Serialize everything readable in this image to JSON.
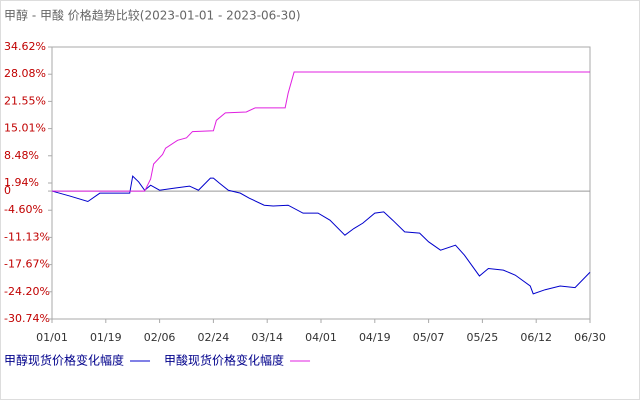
{
  "chart_data": {
    "type": "line",
    "title": "甲醇 - 甲酸 价格趋势比较(2023-01-01 - 2023-06-30)",
    "ylim": [
      -30.74,
      34.62
    ],
    "yticks": [
      {
        "value": 34.62,
        "label": "34.62%"
      },
      {
        "value": 28.08,
        "label": "28.08%"
      },
      {
        "value": 21.55,
        "label": "21.55%"
      },
      {
        "value": 15.01,
        "label": "15.01%"
      },
      {
        "value": 8.48,
        "label": "8.48%"
      },
      {
        "value": 1.94,
        "label": "1.94%"
      },
      0,
      {
        "value": -4.6,
        "label": "-4.60%"
      },
      {
        "value": -11.13,
        "label": "-11.13%"
      },
      {
        "value": -17.67,
        "label": "-17.67%"
      },
      {
        "value": -24.2,
        "label": "-24.20%"
      },
      {
        "value": -30.74,
        "label": "-30.74%"
      }
    ],
    "xticks": [
      "01/01",
      "01/19",
      "02/06",
      "02/24",
      "03/14",
      "04/01",
      "04/19",
      "05/07",
      "05/25",
      "06/12",
      "06/30"
    ],
    "series": [
      {
        "name": "甲醇现货价格变化幅度",
        "color": "#0000cc",
        "x": [
          "01/01",
          "01/07",
          "01/13",
          "01/17",
          "01/27",
          "01/28",
          "01/30",
          "02/01",
          "02/03",
          "02/06",
          "02/11",
          "02/16",
          "02/19",
          "02/23",
          "02/24",
          "02/26",
          "03/01",
          "03/05",
          "03/08",
          "03/13",
          "03/16",
          "03/21",
          "03/26",
          "03/31",
          "04/04",
          "04/09",
          "04/12",
          "04/15",
          "04/19",
          "04/22",
          "04/25",
          "04/29",
          "05/04",
          "05/07",
          "05/11",
          "05/16",
          "05/19",
          "05/24",
          "05/27",
          "06/01",
          "06/05",
          "06/10",
          "06/11",
          "06/15",
          "06/20",
          "06/25",
          "06/30"
        ],
        "values": [
          0,
          -1.2,
          -2.5,
          -0.5,
          -0.5,
          3.6,
          2.2,
          0.2,
          1.4,
          0.2,
          0.7,
          1.2,
          0.2,
          3.1,
          3.1,
          1.9,
          0.2,
          -0.5,
          -1.7,
          -3.4,
          -3.6,
          -3.4,
          -5.3,
          -5.3,
          -7,
          -10.6,
          -9,
          -7.7,
          -5.3,
          -5.0,
          -7,
          -9.8,
          -10.1,
          -12.2,
          -14.2,
          -13,
          -15.4,
          -20.4,
          -18.6,
          -19,
          -20.2,
          -22.8,
          -24.7,
          -23.7,
          -22.8,
          -23.2,
          -19.5
        ]
      },
      {
        "name": "甲酸现货价格变化幅度",
        "color": "#e020e0",
        "x": [
          "01/01",
          "02/01",
          "02/03",
          "02/04",
          "02/07",
          "02/08",
          "02/12",
          "02/15",
          "02/17",
          "02/24",
          "02/25",
          "02/28",
          "03/07",
          "03/10",
          "03/20",
          "03/21",
          "03/23",
          "06/30"
        ],
        "values": [
          0,
          0,
          2.9,
          6.5,
          8.8,
          10.3,
          12.2,
          12.8,
          14.3,
          14.5,
          17.0,
          18.8,
          19.0,
          20.0,
          20.0,
          23.5,
          28.6,
          28.6
        ]
      }
    ]
  }
}
